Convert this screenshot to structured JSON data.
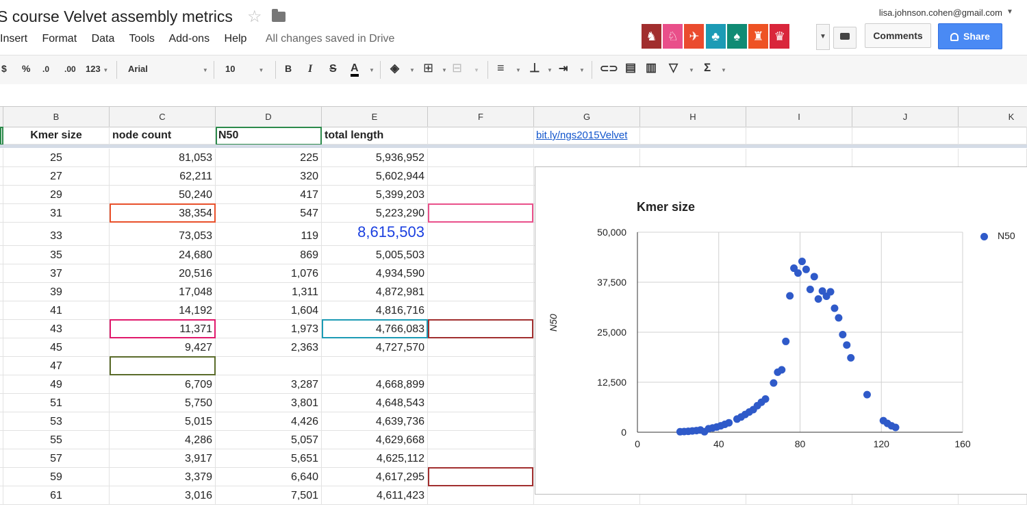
{
  "doc": {
    "title": "S course Velvet assembly metrics",
    "save_status": "All changes saved in Drive"
  },
  "menu": [
    "Insert",
    "Format",
    "Data",
    "Tools",
    "Add-ons",
    "Help"
  ],
  "account": {
    "email": "lisa.johnson.cohen@gmail.com"
  },
  "buttons": {
    "comments": "Comments",
    "share": "Share"
  },
  "toolbar": {
    "currency": "$",
    "percent": "%",
    "dec_less": ".0",
    "dec_more": ".00",
    "more_formats": "123",
    "font": "Arial",
    "font_size": "10",
    "bold": "B",
    "italic": "I",
    "strike": "S",
    "text_color": "A"
  },
  "collaborators": [
    {
      "color": "#a12e2e",
      "icon": "cat-icon"
    },
    {
      "color": "#e94f8a",
      "icon": "fox-icon"
    },
    {
      "color": "#ea4b2e",
      "icon": "bird-icon"
    },
    {
      "color": "#1c9bb5",
      "icon": "chameleon-icon"
    },
    {
      "color": "#108b74",
      "icon": "squirrel-icon"
    },
    {
      "color": "#ee5224",
      "icon": "giraffe-icon"
    },
    {
      "color": "#d9263b",
      "icon": "llama-icon"
    }
  ],
  "columns": [
    "B",
    "C",
    "D",
    "E",
    "F",
    "G",
    "H",
    "I",
    "J",
    "K"
  ],
  "headers": {
    "kmer": "Kmer size",
    "node_count": "node count",
    "n50": "N50",
    "total_length": "total length",
    "link": "bit.ly/ngs2015Velvet"
  },
  "rows": [
    {
      "kmer": "25",
      "node_count": "81,053",
      "n50": "225",
      "total": "5,936,952"
    },
    {
      "kmer": "27",
      "node_count": "62,211",
      "n50": "320",
      "total": "5,602,944"
    },
    {
      "kmer": "29",
      "node_count": "50,240",
      "n50": "417",
      "total": "5,399,203"
    },
    {
      "kmer": "31",
      "node_count": "38,354",
      "n50": "547",
      "total": "5,223,290"
    },
    {
      "kmer": "33",
      "node_count": "73,053",
      "n50": "119",
      "total": "8,615,503"
    },
    {
      "kmer": "35",
      "node_count": "24,680",
      "n50": "869",
      "total": "5,005,503"
    },
    {
      "kmer": "37",
      "node_count": "20,516",
      "n50": "1,076",
      "total": "4,934,590"
    },
    {
      "kmer": "39",
      "node_count": "17,048",
      "n50": "1,311",
      "total": "4,872,981"
    },
    {
      "kmer": "41",
      "node_count": "14,192",
      "n50": "1,604",
      "total": "4,816,716"
    },
    {
      "kmer": "43",
      "node_count": "11,371",
      "n50": "1,973",
      "total": "4,766,083"
    },
    {
      "kmer": "45",
      "node_count": "9,427",
      "n50": "2,363",
      "total": "4,727,570"
    },
    {
      "kmer": "47",
      "node_count": "",
      "n50": "",
      "total": ""
    },
    {
      "kmer": "49",
      "node_count": "6,709",
      "n50": "3,287",
      "total": "4,668,899"
    },
    {
      "kmer": "51",
      "node_count": "5,750",
      "n50": "3,801",
      "total": "4,648,543"
    },
    {
      "kmer": "53",
      "node_count": "5,015",
      "n50": "4,426",
      "total": "4,639,736"
    },
    {
      "kmer": "55",
      "node_count": "4,286",
      "n50": "5,057",
      "total": "4,629,668"
    },
    {
      "kmer": "57",
      "node_count": "3,917",
      "n50": "5,651",
      "total": "4,625,112"
    },
    {
      "kmer": "59",
      "node_count": "3,379",
      "n50": "6,640",
      "total": "4,617,295"
    },
    {
      "kmer": "61",
      "node_count": "3,016",
      "n50": "7,501",
      "total": "4,611,423"
    }
  ],
  "chart": {
    "title": "Kmer size",
    "ylabel": "N50",
    "legend": "N50",
    "xticks": [
      "0",
      "40",
      "80",
      "120",
      "160"
    ],
    "yticks": [
      "0",
      "12,500",
      "25,000",
      "37,500",
      "50,000"
    ]
  },
  "chart_data": {
    "type": "scatter",
    "title": "Kmer size",
    "xlabel": "",
    "ylabel": "N50",
    "xlim": [
      0,
      160
    ],
    "ylim": [
      0,
      50000
    ],
    "grid": true,
    "legend_position": "right",
    "series": [
      {
        "name": "N50",
        "color": "#2f5ac9",
        "points": [
          [
            21,
            120
          ],
          [
            23,
            170
          ],
          [
            25,
            225
          ],
          [
            27,
            320
          ],
          [
            29,
            417
          ],
          [
            31,
            547
          ],
          [
            33,
            119
          ],
          [
            35,
            869
          ],
          [
            37,
            1076
          ],
          [
            39,
            1311
          ],
          [
            41,
            1604
          ],
          [
            43,
            1973
          ],
          [
            45,
            2363
          ],
          [
            49,
            3287
          ],
          [
            51,
            3801
          ],
          [
            53,
            4426
          ],
          [
            55,
            5057
          ],
          [
            57,
            5651
          ],
          [
            59,
            6640
          ],
          [
            61,
            7501
          ],
          [
            63,
            8300
          ],
          [
            67,
            12300
          ],
          [
            69,
            15000
          ],
          [
            71,
            15600
          ],
          [
            73,
            22700
          ],
          [
            75,
            34100
          ],
          [
            77,
            41000
          ],
          [
            79,
            39800
          ],
          [
            81,
            42700
          ],
          [
            83,
            40700
          ],
          [
            85,
            35700
          ],
          [
            87,
            38900
          ],
          [
            89,
            33300
          ],
          [
            91,
            35300
          ],
          [
            93,
            34000
          ],
          [
            95,
            35100
          ],
          [
            97,
            31000
          ],
          [
            99,
            28600
          ],
          [
            101,
            24400
          ],
          [
            103,
            21800
          ],
          [
            105,
            18600
          ],
          [
            113,
            9400
          ],
          [
            121,
            2900
          ],
          [
            123,
            2200
          ],
          [
            125,
            1600
          ],
          [
            127,
            1200
          ]
        ]
      }
    ]
  }
}
